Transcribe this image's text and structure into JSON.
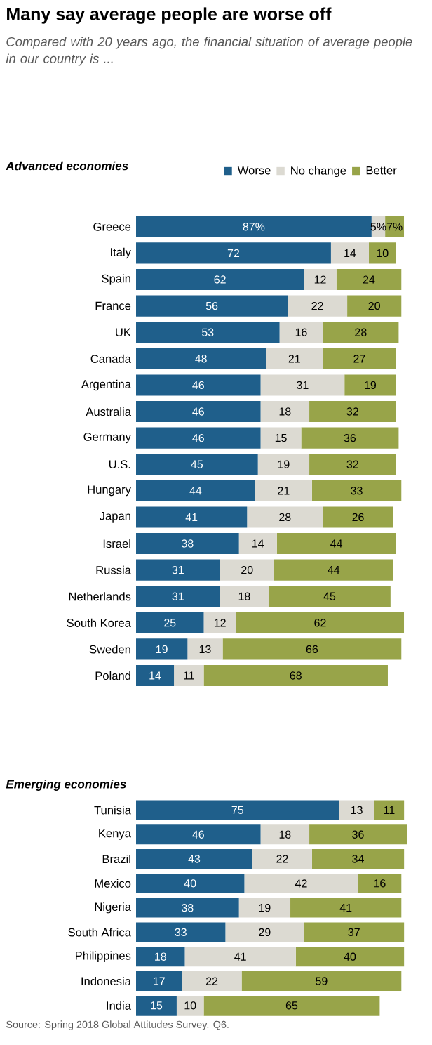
{
  "chart_data": [
    {
      "type": "bar",
      "orientation": "horizontal",
      "stacked": true,
      "title": "Many say average people are worse off",
      "subtitle": "Compared with 20 years ago, the financial situation of average people in our country is ...",
      "annotations": [
        "Advanced economies"
      ],
      "legend": "top",
      "categories": [
        "Greece",
        "Italy",
        "Spain",
        "France",
        "UK",
        "Canada",
        "Argentina",
        "Australia",
        "Germany",
        "U.S.",
        "Hungary",
        "Japan",
        "Israel",
        "Russia",
        "Netherlands",
        "South Korea",
        "Sweden",
        "Poland"
      ],
      "series": [
        {
          "name": "Worse",
          "color": "#1f5f8b",
          "values": [
            87,
            72,
            62,
            56,
            53,
            48,
            46,
            46,
            46,
            45,
            44,
            41,
            38,
            31,
            31,
            25,
            19,
            14
          ],
          "value_labels": [
            "87%",
            "72",
            "62",
            "56",
            "53",
            "48",
            "46",
            "46",
            "46",
            "45",
            "44",
            "41",
            "38",
            "31",
            "31",
            "25",
            "19",
            "14"
          ]
        },
        {
          "name": "No change",
          "color": "#dcdad2",
          "values": [
            5,
            14,
            12,
            22,
            16,
            21,
            31,
            18,
            15,
            19,
            21,
            28,
            14,
            20,
            18,
            12,
            13,
            11
          ],
          "value_labels": [
            "5%",
            "14",
            "12",
            "22",
            "16",
            "21",
            "31",
            "18",
            "15",
            "19",
            "21",
            "28",
            "14",
            "20",
            "18",
            "12",
            "13",
            "11"
          ]
        },
        {
          "name": "Better",
          "color": "#98a449",
          "values": [
            7,
            10,
            24,
            20,
            28,
            27,
            19,
            32,
            36,
            32,
            33,
            26,
            44,
            44,
            45,
            62,
            66,
            68
          ],
          "value_labels": [
            "7%",
            "10",
            "24",
            "20",
            "28",
            "27",
            "19",
            "32",
            "36",
            "32",
            "33",
            "26",
            "44",
            "44",
            "45",
            "62",
            "66",
            "68"
          ]
        }
      ]
    },
    {
      "type": "bar",
      "orientation": "horizontal",
      "stacked": true,
      "annotations": [
        "Emerging economies",
        "Source: Spring 2018 Global Attitudes Survey. Q6."
      ],
      "categories": [
        "Tunisia",
        "Kenya",
        "Brazil",
        "Mexico",
        "Nigeria",
        "South Africa",
        "Philippines",
        "Indonesia",
        "India"
      ],
      "series": [
        {
          "color": "#1f5f8b",
          "values": [
            75,
            46,
            43,
            40,
            38,
            33,
            18,
            17,
            15
          ],
          "value_labels": [
            "75",
            "46",
            "43",
            "40",
            "38",
            "33",
            "18",
            "17",
            "15"
          ]
        },
        {
          "color": "#dcdad2",
          "values": [
            13,
            18,
            22,
            42,
            19,
            29,
            41,
            22,
            10
          ],
          "value_labels": [
            "13",
            "18",
            "22",
            "42",
            "19",
            "29",
            "41",
            "22",
            "10"
          ]
        },
        {
          "color": "#98a449",
          "values": [
            11,
            36,
            34,
            16,
            41,
            37,
            40,
            59,
            65
          ],
          "value_labels": [
            "11",
            "36",
            "34",
            "16",
            "41",
            "37",
            "40",
            "59",
            "65"
          ]
        }
      ]
    }
  ]
}
